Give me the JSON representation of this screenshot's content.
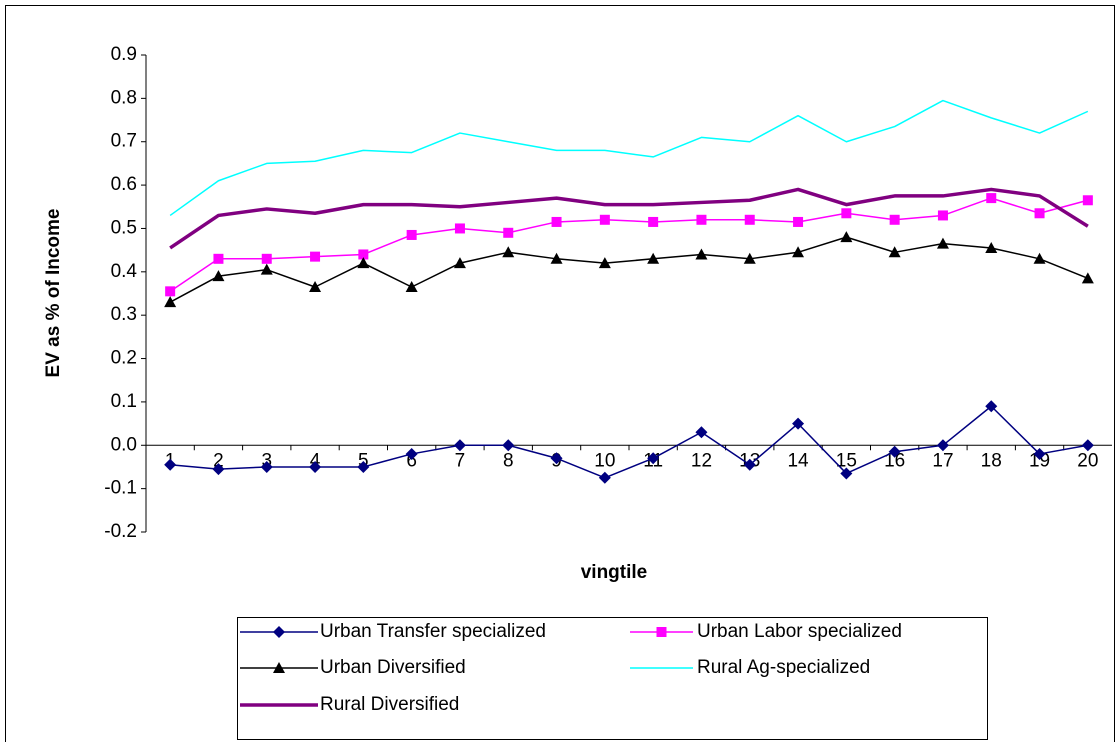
{
  "chart_data": {
    "type": "line",
    "x_label": "vingtile",
    "y_label": "EV as % of Income",
    "categories": [
      "1",
      "2",
      "3",
      "4",
      "5",
      "6",
      "7",
      "8",
      "9",
      "10",
      "11",
      "12",
      "13",
      "14",
      "15",
      "16",
      "17",
      "18",
      "19",
      "20"
    ],
    "series": [
      {
        "name": "Urban Transfer specialized",
        "color": "#000080",
        "marker": "diamond",
        "line_width": 1.5,
        "values": [
          -0.045,
          -0.055,
          -0.05,
          -0.05,
          -0.05,
          -0.02,
          0.0,
          0.0,
          -0.03,
          -0.075,
          -0.03,
          0.03,
          -0.045,
          0.05,
          -0.065,
          -0.015,
          0.0,
          0.09,
          -0.02,
          0.0
        ]
      },
      {
        "name": "Urban Labor specialized",
        "color": "#ff00ff",
        "marker": "square",
        "line_width": 1.5,
        "values": [
          0.355,
          0.43,
          0.43,
          0.435,
          0.44,
          0.485,
          0.5,
          0.49,
          0.515,
          0.52,
          0.515,
          0.52,
          0.52,
          0.515,
          0.535,
          0.52,
          0.53,
          0.57,
          0.535,
          0.565
        ]
      },
      {
        "name": "Urban Diversified",
        "color": "#000000",
        "marker": "triangle",
        "line_width": 1.5,
        "values": [
          0.33,
          0.39,
          0.405,
          0.365,
          0.42,
          0.365,
          0.42,
          0.445,
          0.43,
          0.42,
          0.43,
          0.44,
          0.43,
          0.445,
          0.48,
          0.445,
          0.465,
          0.455,
          0.43,
          0.385
        ]
      },
      {
        "name": "Rural Ag-specialized",
        "color": "#00ffff",
        "marker": "none",
        "line_width": 1.5,
        "values": [
          0.53,
          0.61,
          0.65,
          0.655,
          0.68,
          0.675,
          0.72,
          0.7,
          0.68,
          0.68,
          0.665,
          0.71,
          0.7,
          0.76,
          0.7,
          0.735,
          0.795,
          0.755,
          0.72,
          0.77
        ]
      },
      {
        "name": "Rural Diversified",
        "color": "#800080",
        "marker": "none",
        "line_width": 3.5,
        "values": [
          0.455,
          0.53,
          0.545,
          0.535,
          0.555,
          0.555,
          0.55,
          0.56,
          0.57,
          0.555,
          0.555,
          0.56,
          0.565,
          0.59,
          0.555,
          0.575,
          0.575,
          0.59,
          0.575,
          0.505
        ]
      }
    ],
    "ylim": [
      -0.2,
      0.9
    ],
    "yticks": [
      -0.2,
      -0.1,
      {
        "value": 0,
        "label": "0.0"
      },
      0.1,
      0.2,
      0.3,
      0.4,
      0.5,
      0.6,
      0.7,
      0.8,
      0.9
    ],
    "grid": false,
    "legend_position": "bottom"
  }
}
